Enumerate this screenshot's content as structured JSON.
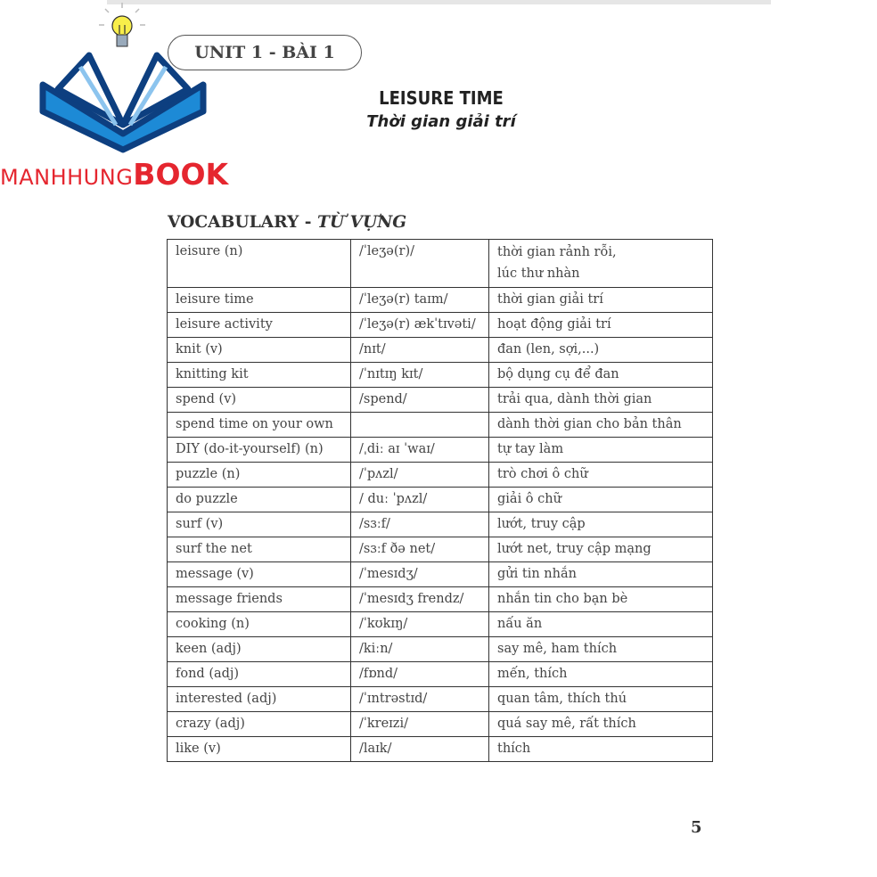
{
  "brand": {
    "name_a": "MANHHUNG",
    "name_b": "BOOK",
    "colors": {
      "red": "#e5262f",
      "blue": "#1d8ad6",
      "navy": "#0d3f80",
      "bulb": "#f8ee4a"
    }
  },
  "header": {
    "unit": "UNIT 1 - BÀI 1",
    "title": "LEISURE TIME",
    "subtitle": "Thời gian giải trí"
  },
  "section": {
    "title": "VOCABULARY - ",
    "title_vi": "TỪ VỰNG"
  },
  "vocabulary": [
    {
      "word": "leisure (n)",
      "ipa": "/ˈleʒə(r)/",
      "meaning": "thời gian rảnh rỗi,",
      "meaning2": "lúc thư nhàn"
    },
    {
      "word": "leisure time",
      "ipa": "/ˈleʒə(r) taɪm/",
      "meaning": "thời gian giải trí"
    },
    {
      "word": "leisure activity",
      "ipa": "/ˈleʒə(r) ækˈtɪvəti/",
      "meaning": "hoạt động giải trí"
    },
    {
      "word": "knit (v)",
      "ipa": "/nɪt/",
      "meaning": "đan (len, sợi,...)"
    },
    {
      "word": "knitting kit",
      "ipa": "/ˈnɪtɪŋ kɪt/",
      "meaning": "bộ dụng cụ để đan"
    },
    {
      "word": "spend (v)",
      "ipa": "/spend/",
      "meaning": "trải qua, dành thời gian"
    },
    {
      "word": "spend time on your own",
      "ipa": "",
      "meaning": "dành thời gian cho bản thân"
    },
    {
      "word": "DIY (do-it-yourself) (n)",
      "ipa": "/ˌdiː aɪ ˈwaɪ/",
      "meaning": "tự tay làm"
    },
    {
      "word": "puzzle (n)",
      "ipa": "/ˈpʌzl/",
      "meaning": "trò chơi ô chữ"
    },
    {
      "word": "do puzzle",
      "ipa": "/ duː ˈpʌzl/",
      "meaning": "giải ô chữ"
    },
    {
      "word": "surf (v)",
      "ipa": "/sɜːf/",
      "meaning": "lướt, truy cập"
    },
    {
      "word": "surf the net",
      "ipa": "/sɜːf ðə net/",
      "meaning": "lướt net, truy cập mạng"
    },
    {
      "word": "message (v)",
      "ipa": "/ˈmesɪdʒ/",
      "meaning": "gửi tin nhắn"
    },
    {
      "word": "message friends",
      "ipa": "/ˈmesɪdʒ frendz/",
      "meaning": "nhắn tin cho bạn bè"
    },
    {
      "word": "cooking (n)",
      "ipa": "/ˈkʊkɪŋ/",
      "meaning": "nấu ăn"
    },
    {
      "word": "keen (adj)",
      "ipa": "/kiːn/",
      "meaning": "say mê, ham thích"
    },
    {
      "word": "fond (adj)",
      "ipa": "/fɒnd/",
      "meaning": "mến, thích"
    },
    {
      "word": "interested (adj)",
      "ipa": "/ˈɪntrəstɪd/",
      "meaning": "quan tâm, thích thú"
    },
    {
      "word": "crazy (adj)",
      "ipa": "/ˈkreɪzi/",
      "meaning": "quá say mê, rất thích"
    },
    {
      "word": "like (v)",
      "ipa": "/laɪk/",
      "meaning": "thích"
    }
  ],
  "page_number": "5"
}
